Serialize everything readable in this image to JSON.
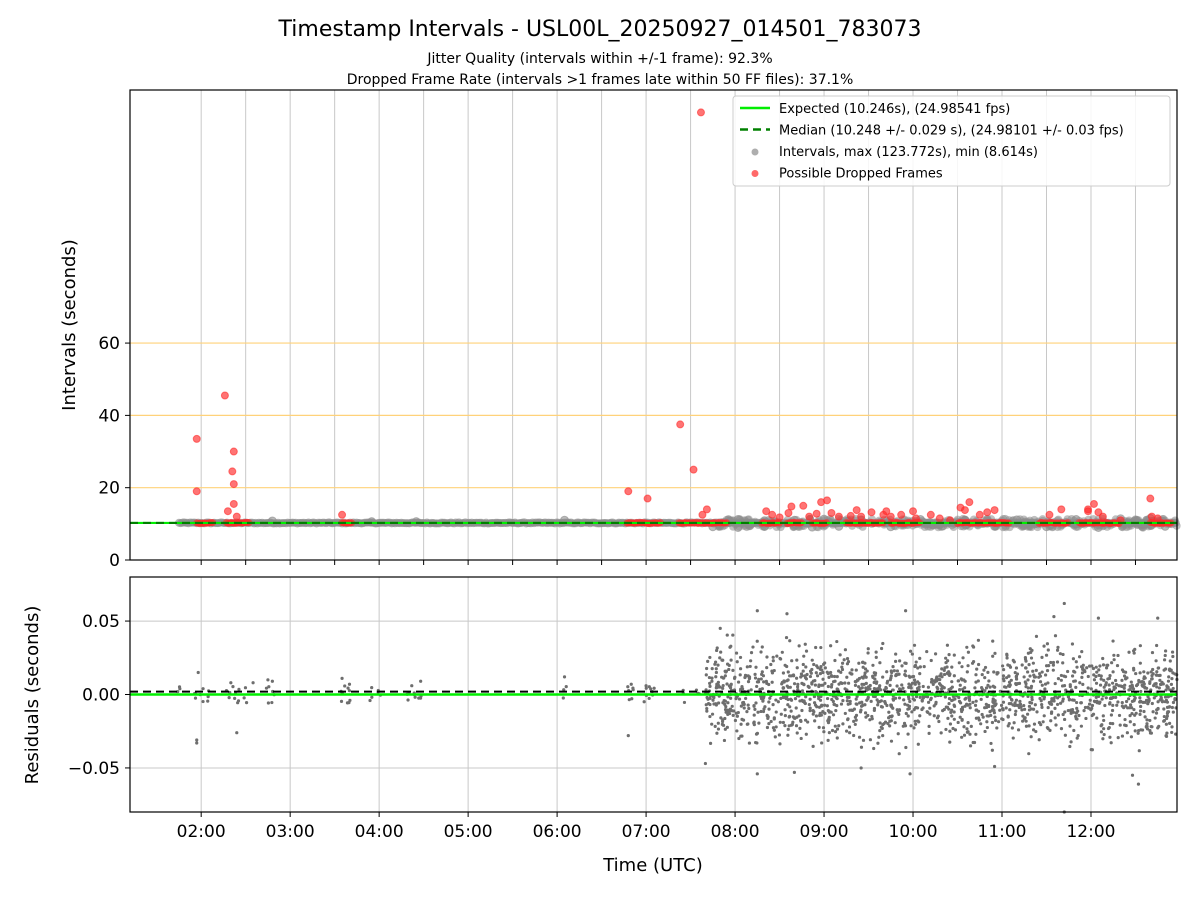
{
  "chart_data": [
    {
      "type": "scatter",
      "title": "Timestamp Intervals - USL00L_20250927_014501_783073",
      "subtitle_1": "Jitter Quality (intervals within +/-1 frame): 92.3%",
      "subtitle_2": "Dropped Frame Rate (intervals >1 frames late within 50 FF files): 37.1%",
      "ylabel": "Intervals (seconds)",
      "xlabel": "",
      "x_range": [
        "01:12",
        "12:58"
      ],
      "ylim": [
        0,
        130
      ],
      "yticks": [
        0,
        20,
        40,
        60
      ],
      "ytick_labels": [
        "0",
        "20",
        "40",
        "60"
      ],
      "threshold_lines": [
        20,
        40,
        60
      ],
      "threshold_color": "#ffd27a",
      "grid": true,
      "legend_position": "top-right",
      "legend": [
        {
          "label": "Expected (10.246s), (24.98541 fps)",
          "style": "solid-line",
          "color": "#00ee00"
        },
        {
          "label": "Median (10.248 +/- 0.029 s), (24.98101 +/- 0.03 fps)",
          "style": "dashed-line",
          "color": "#008000"
        },
        {
          "label": "Intervals, max (123.772s), min (8.614s)",
          "style": "dot",
          "color": "#8c8c8c"
        },
        {
          "label": "Possible Dropped Frames",
          "style": "dot",
          "color": "#ff2a2a"
        }
      ],
      "series": [
        {
          "name": "Expected (10.246s), (24.98541 fps)",
          "type": "hline",
          "y": 10.246,
          "color": "#00ee00"
        },
        {
          "name": "Median (10.248 +/- 0.029 s), (24.98101 +/- 0.03 fps)",
          "type": "hline",
          "y": 10.248,
          "color": "#008000"
        },
        {
          "name": "Intervals, max (123.772s), min (8.614s)",
          "color": "#8c8c8c",
          "segments": [
            {
              "x_start": "01:45",
              "x_end": "12:58",
              "y": 10.25
            }
          ],
          "points": [
            {
              "x": "02:48",
              "y": 10.8
            },
            {
              "x": "03:55",
              "y": 10.6
            },
            {
              "x": "04:25",
              "y": 10.6
            },
            {
              "x": "06:05",
              "y": 11.0
            },
            {
              "x": "07:45",
              "y": 9.2
            },
            {
              "x": "08:02",
              "y": 11.2
            },
            {
              "x": "08:02",
              "y": 9.0
            },
            {
              "x": "08:20",
              "y": 9.3
            },
            {
              "x": "08:40",
              "y": 11.0
            },
            {
              "x": "08:52",
              "y": 9.1
            },
            {
              "x": "09:00",
              "y": 11.3
            },
            {
              "x": "09:10",
              "y": 9.3
            },
            {
              "x": "09:25",
              "y": 11.1
            },
            {
              "x": "09:45",
              "y": 9.2
            },
            {
              "x": "10:05",
              "y": 11.2
            },
            {
              "x": "10:20",
              "y": 9.4
            },
            {
              "x": "10:35",
              "y": 11.0
            },
            {
              "x": "10:55",
              "y": 9.3
            },
            {
              "x": "11:10",
              "y": 11.1
            },
            {
              "x": "11:30",
              "y": 9.2
            },
            {
              "x": "11:50",
              "y": 11.2
            },
            {
              "x": "12:05",
              "y": 9.0
            },
            {
              "x": "12:20",
              "y": 11.4
            },
            {
              "x": "12:35",
              "y": 9.1
            },
            {
              "x": "12:40",
              "y": 11.5
            },
            {
              "x": "12:50",
              "y": 9.3
            }
          ]
        },
        {
          "name": "Possible Dropped Frames",
          "color": "#ff2a2a",
          "segments": [
            {
              "x_start": "01:57",
              "x_end": "02:08",
              "y": 10.25
            },
            {
              "x_start": "02:17",
              "x_end": "02:33",
              "y": 10.25
            },
            {
              "x_start": "03:35",
              "x_end": "03:42",
              "y": 10.25
            },
            {
              "x_start": "06:47",
              "x_end": "07:10",
              "y": 10.25
            },
            {
              "x_start": "07:22",
              "x_end": "07:55",
              "y": 10.25
            },
            {
              "x_start": "08:18",
              "x_end": "08:30",
              "y": 10.25
            },
            {
              "x_start": "08:35",
              "x_end": "08:45",
              "y": 10.25
            },
            {
              "x_start": "08:52",
              "x_end": "09:02",
              "y": 10.25
            },
            {
              "x_start": "09:15",
              "x_end": "09:40",
              "y": 10.25
            },
            {
              "x_start": "09:45",
              "x_end": "10:05",
              "y": 10.25
            },
            {
              "x_start": "10:30",
              "x_end": "10:55",
              "y": 10.25
            },
            {
              "x_start": "10:55",
              "x_end": "11:05",
              "y": 10.25
            },
            {
              "x_start": "11:25",
              "x_end": "11:45",
              "y": 10.25
            },
            {
              "x_start": "11:52",
              "x_end": "12:20",
              "y": 10.25
            },
            {
              "x_start": "12:40",
              "x_end": "12:55",
              "y": 10.25
            }
          ],
          "points": [
            {
              "x": "01:57",
              "y": 33.5
            },
            {
              "x": "01:57",
              "y": 19.0
            },
            {
              "x": "02:16",
              "y": 45.5
            },
            {
              "x": "02:22",
              "y": 30.0
            },
            {
              "x": "02:21",
              "y": 24.5
            },
            {
              "x": "02:22",
              "y": 21.0
            },
            {
              "x": "02:22",
              "y": 15.5
            },
            {
              "x": "02:18",
              "y": 13.5
            },
            {
              "x": "02:24",
              "y": 12.0
            },
            {
              "x": "03:35",
              "y": 12.5
            },
            {
              "x": "06:48",
              "y": 19.0
            },
            {
              "x": "07:01",
              "y": 17.0
            },
            {
              "x": "07:23",
              "y": 37.5
            },
            {
              "x": "07:32",
              "y": 25.0
            },
            {
              "x": "07:37",
              "y": 123.8
            },
            {
              "x": "07:41",
              "y": 14.0
            },
            {
              "x": "07:38",
              "y": 12.5
            },
            {
              "x": "08:21",
              "y": 13.5
            },
            {
              "x": "08:25",
              "y": 12.5
            },
            {
              "x": "08:30",
              "y": 11.8
            },
            {
              "x": "08:38",
              "y": 14.8
            },
            {
              "x": "08:36",
              "y": 13.0
            },
            {
              "x": "08:46",
              "y": 15.0
            },
            {
              "x": "08:50",
              "y": 12.0
            },
            {
              "x": "08:55",
              "y": 12.8
            },
            {
              "x": "08:58",
              "y": 16.0
            },
            {
              "x": "09:02",
              "y": 16.5
            },
            {
              "x": "09:05",
              "y": 13.0
            },
            {
              "x": "09:10",
              "y": 12.0
            },
            {
              "x": "09:18",
              "y": 12.2
            },
            {
              "x": "09:22",
              "y": 13.8
            },
            {
              "x": "09:25",
              "y": 12.0
            },
            {
              "x": "09:32",
              "y": 13.2
            },
            {
              "x": "09:40",
              "y": 12.5
            },
            {
              "x": "09:42",
              "y": 13.5
            },
            {
              "x": "09:45",
              "y": 12.0
            },
            {
              "x": "09:52",
              "y": 12.5
            },
            {
              "x": "10:00",
              "y": 13.5
            },
            {
              "x": "10:02",
              "y": 11.5
            },
            {
              "x": "10:12",
              "y": 12.5
            },
            {
              "x": "10:18",
              "y": 11.5
            },
            {
              "x": "10:25",
              "y": 11.0
            },
            {
              "x": "10:32",
              "y": 14.5
            },
            {
              "x": "10:35",
              "y": 13.8
            },
            {
              "x": "10:38",
              "y": 16.0
            },
            {
              "x": "10:45",
              "y": 12.5
            },
            {
              "x": "10:50",
              "y": 13.2
            },
            {
              "x": "10:55",
              "y": 13.8
            },
            {
              "x": "11:32",
              "y": 12.5
            },
            {
              "x": "11:40",
              "y": 14.0
            },
            {
              "x": "11:58",
              "y": 14.0
            },
            {
              "x": "11:58",
              "y": 13.5
            },
            {
              "x": "12:02",
              "y": 15.5
            },
            {
              "x": "12:05",
              "y": 13.2
            },
            {
              "x": "12:08",
              "y": 12.0
            },
            {
              "x": "12:20",
              "y": 11.0
            },
            {
              "x": "12:40",
              "y": 17.0
            },
            {
              "x": "12:41",
              "y": 12.0
            },
            {
              "x": "12:45",
              "y": 11.5
            }
          ]
        }
      ]
    },
    {
      "type": "scatter",
      "ylabel": "Residuals (seconds)",
      "xlabel": "Time (UTC)",
      "x_range": [
        "01:12",
        "12:58"
      ],
      "xticks": [
        "02:00",
        "03:00",
        "04:00",
        "05:00",
        "06:00",
        "07:00",
        "08:00",
        "09:00",
        "10:00",
        "11:00",
        "12:00"
      ],
      "ylim": [
        -0.08,
        0.08
      ],
      "yticks": [
        0.05,
        0.0,
        -0.05
      ],
      "ytick_labels": [
        "0.05",
        "0.00",
        "−0.05"
      ],
      "grid": true,
      "reference_lines": [
        {
          "y": 0.0,
          "style": "solid",
          "color": "#00ee00"
        },
        {
          "y": 0.002,
          "style": "dashed",
          "color": "#000000"
        }
      ],
      "series": [
        {
          "color": "#6e6e6e",
          "description_free_points": [
            {
              "x": "01:58",
              "y": 0.015
            },
            {
              "x": "01:57",
              "y": -0.031
            },
            {
              "x": "01:57",
              "y": -0.033
            },
            {
              "x": "02:24",
              "y": -0.026
            },
            {
              "x": "02:20",
              "y": 0.008
            },
            {
              "x": "02:35",
              "y": 0.008
            },
            {
              "x": "02:45",
              "y": 0.01
            },
            {
              "x": "02:48",
              "y": 0.009
            },
            {
              "x": "03:35",
              "y": 0.011
            },
            {
              "x": "03:40",
              "y": 0.007
            },
            {
              "x": "04:22",
              "y": 0.006
            },
            {
              "x": "04:28",
              "y": 0.009
            },
            {
              "x": "06:05",
              "y": 0.012
            },
            {
              "x": "06:48",
              "y": -0.028
            },
            {
              "x": "06:50",
              "y": 0.007
            },
            {
              "x": "07:00",
              "y": 0.006
            },
            {
              "x": "07:40",
              "y": -0.047
            },
            {
              "x": "07:50",
              "y": 0.045
            },
            {
              "x": "08:15",
              "y": 0.057
            },
            {
              "x": "08:15",
              "y": -0.054
            },
            {
              "x": "08:35",
              "y": 0.055
            },
            {
              "x": "08:40",
              "y": -0.053
            },
            {
              "x": "09:25",
              "y": -0.05
            },
            {
              "x": "09:55",
              "y": 0.057
            },
            {
              "x": "09:58",
              "y": -0.054
            },
            {
              "x": "10:55",
              "y": -0.049
            },
            {
              "x": "11:35",
              "y": 0.053
            },
            {
              "x": "11:42",
              "y": 0.062
            },
            {
              "x": "11:42",
              "y": -0.08
            },
            {
              "x": "12:05",
              "y": 0.052
            },
            {
              "x": "12:28",
              "y": -0.055
            },
            {
              "x": "12:32",
              "y": -0.061
            },
            {
              "x": "12:45",
              "y": 0.052
            }
          ],
          "dense_band": {
            "x_start": "07:40",
            "x_end": "12:58",
            "y_spread": 0.045
          }
        }
      ]
    }
  ]
}
